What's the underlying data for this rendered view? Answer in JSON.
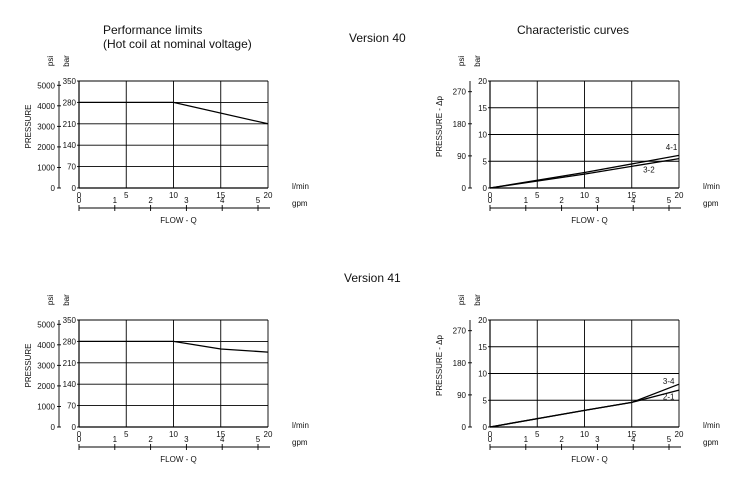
{
  "headings": {
    "performance_title": "Performance limits",
    "performance_subtitle": "(Hot coil at nominal voltage)",
    "characteristic_title": "Characteristic curves",
    "version_40": "Version 40",
    "version_41": "Version 41"
  },
  "chart_data": [
    {
      "id": "v40-performance",
      "type": "line",
      "ylabel": "PRESSURE",
      "xlabel": "FLOW - Q",
      "x_unit_primary": "l/min",
      "x_unit_secondary": "gpm",
      "y_unit_primary": "bar",
      "y_unit_secondary": "psi",
      "xlim": [
        0,
        20
      ],
      "ylim": [
        0,
        350
      ],
      "x_ticks": [
        "0",
        "5",
        "10",
        "15",
        "20"
      ],
      "x2_ticks": [
        "0",
        "1",
        "2",
        "3",
        "4",
        "5"
      ],
      "y_ticks": [
        "0",
        "70",
        "140",
        "210",
        "280",
        "350"
      ],
      "y2_ticks": [
        "0",
        "1000",
        "2000",
        "3000",
        "4000",
        "5000"
      ],
      "grid": true,
      "series": [
        {
          "x": [
            0,
            10,
            20
          ],
          "y": [
            280,
            280,
            210
          ]
        }
      ],
      "annotations": []
    },
    {
      "id": "v40-characteristic",
      "type": "line",
      "ylabel": "PRESSURE - Δp",
      "xlabel": "FLOW - Q",
      "x_unit_primary": "l/min",
      "x_unit_secondary": "gpm",
      "y_unit_primary": "bar",
      "y_unit_secondary": "psi",
      "xlim": [
        0,
        20
      ],
      "ylim": [
        0,
        20
      ],
      "x_ticks": [
        "0",
        "5",
        "10",
        "15",
        "20"
      ],
      "x2_ticks": [
        "0",
        "1",
        "2",
        "3",
        "4",
        "5"
      ],
      "y_ticks": [
        "0",
        "5",
        "10",
        "15",
        "20"
      ],
      "y2_ticks": [
        "0",
        "90",
        "180",
        "270"
      ],
      "grid": true,
      "series": [
        {
          "name": "4-1",
          "x": [
            0,
            10,
            20
          ],
          "y": [
            0,
            2.9,
            6.1
          ]
        },
        {
          "name": "3-2",
          "x": [
            0,
            10,
            20
          ],
          "y": [
            0,
            2.6,
            5.5
          ]
        }
      ],
      "annotations": [
        {
          "text": "4-1",
          "x": 18.6,
          "y": 7.1
        },
        {
          "text": "3-2",
          "x": 16.2,
          "y": 2.9
        }
      ]
    },
    {
      "id": "v41-performance",
      "type": "line",
      "ylabel": "PRESSURE",
      "xlabel": "FLOW - Q",
      "x_unit_primary": "l/min",
      "x_unit_secondary": "gpm",
      "y_unit_primary": "bar",
      "y_unit_secondary": "psi",
      "xlim": [
        0,
        20
      ],
      "ylim": [
        0,
        350
      ],
      "x_ticks": [
        "0",
        "5",
        "10",
        "15",
        "20"
      ],
      "x2_ticks": [
        "0",
        "1",
        "2",
        "3",
        "4",
        "5"
      ],
      "y_ticks": [
        "0",
        "70",
        "140",
        "210",
        "280",
        "350"
      ],
      "y2_ticks": [
        "0",
        "1000",
        "2000",
        "3000",
        "4000",
        "5000"
      ],
      "grid": true,
      "series": [
        {
          "x": [
            0,
            10,
            15,
            20
          ],
          "y": [
            280,
            280,
            255,
            245
          ]
        }
      ],
      "annotations": []
    },
    {
      "id": "v41-characteristic",
      "type": "line",
      "ylabel": "PRESSURE - Δp",
      "xlabel": "FLOW - Q",
      "x_unit_primary": "l/min",
      "x_unit_secondary": "gpm",
      "y_unit_primary": "bar",
      "y_unit_secondary": "psi",
      "xlim": [
        0,
        20
      ],
      "ylim": [
        0,
        20
      ],
      "x_ticks": [
        "0",
        "5",
        "10",
        "15",
        "20"
      ],
      "x2_ticks": [
        "0",
        "1",
        "2",
        "3",
        "4",
        "5"
      ],
      "y_ticks": [
        "0",
        "5",
        "10",
        "15",
        "20"
      ],
      "y2_ticks": [
        "0",
        "90",
        "180",
        "270"
      ],
      "grid": true,
      "series": [
        {
          "name": "3-4",
          "x": [
            0,
            10,
            15,
            20
          ],
          "y": [
            0,
            3.1,
            4.6,
            8.0
          ]
        },
        {
          "name": "2-1",
          "x": [
            0,
            10,
            15,
            20
          ],
          "y": [
            0,
            3.1,
            4.6,
            6.9
          ]
        }
      ],
      "annotations": [
        {
          "text": "3-4",
          "x": 18.3,
          "y": 8.0
        },
        {
          "text": "2-1",
          "x": 18.3,
          "y": 5.1
        }
      ]
    }
  ]
}
